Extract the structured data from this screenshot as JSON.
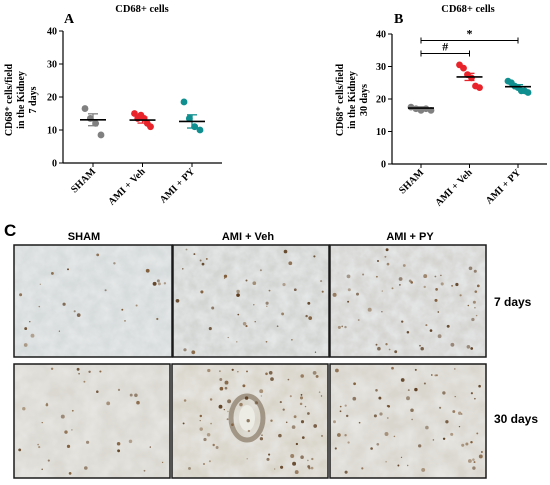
{
  "chart_data": [
    {
      "type": "scatter",
      "panel_letter": "A",
      "title": "CD68+ cells",
      "ylabel_line1": "CD68⁺ cells/field",
      "ylabel_line2": "in the Kidney",
      "ylabel_line3": "7 days",
      "ylim": [
        0,
        40
      ],
      "yticks": [
        "0",
        "10",
        "20",
        "30",
        "40"
      ],
      "categories": [
        "SHAM",
        "AMI + Veh",
        "AMI + PY"
      ],
      "series": [
        {
          "category": "SHAM",
          "color": "#808080",
          "mean": 13.1,
          "sem": 1.8,
          "points": [
            16.5,
            13.5,
            12,
            8.5
          ]
        },
        {
          "category": "AMI + Veh",
          "color": "#e8232a",
          "mean": 13.0,
          "sem": 0.9,
          "points": [
            15,
            13.5,
            14.5,
            13.5,
            12,
            11
          ]
        },
        {
          "category": "AMI + PY",
          "color": "#0f8f8f",
          "mean": 12.6,
          "sem": 2.0,
          "points": [
            18.5,
            13.5,
            11,
            10
          ]
        }
      ]
    },
    {
      "type": "scatter",
      "panel_letter": "B",
      "title": "CD68+ cells",
      "ylabel_line1": "CD68⁺ cells/field",
      "ylabel_line2": "in the Kidney",
      "ylabel_line3": "30 days",
      "ylim": [
        0,
        40
      ],
      "yticks": [
        "0",
        "10",
        "20",
        "30",
        "40"
      ],
      "categories": [
        "SHAM",
        "AMI + Veh",
        "AMI + PY"
      ],
      "series": [
        {
          "category": "SHAM",
          "color": "#808080",
          "mean": 17.2,
          "sem": 0.4,
          "points": [
            17.5,
            17.0,
            16.5,
            17.0,
            16.5
          ]
        },
        {
          "category": "AMI + Veh",
          "color": "#e8232a",
          "mean": 26.8,
          "sem": 1.1,
          "points": [
            30.5,
            29.5,
            27.5,
            26.5,
            24.0,
            23.5
          ]
        },
        {
          "category": "AMI + PY",
          "color": "#0f8f8f",
          "mean": 23.8,
          "sem": 0.6,
          "points": [
            25.5,
            25.0,
            24.0,
            23.5,
            22.5,
            22.5,
            22.0
          ]
        }
      ],
      "annotations": [
        {
          "symbol": "*",
          "from": "SHAM",
          "to": "AMI + PY",
          "y": 38
        },
        {
          "symbol": "#",
          "from": "SHAM",
          "to": "AMI + Veh",
          "y": 34
        }
      ]
    }
  ],
  "micrographs": {
    "panel_letter": "C",
    "columns": [
      "SHAM",
      "AMI + Veh",
      "AMI + PY"
    ],
    "rows": [
      "7 days",
      "30 days"
    ]
  }
}
